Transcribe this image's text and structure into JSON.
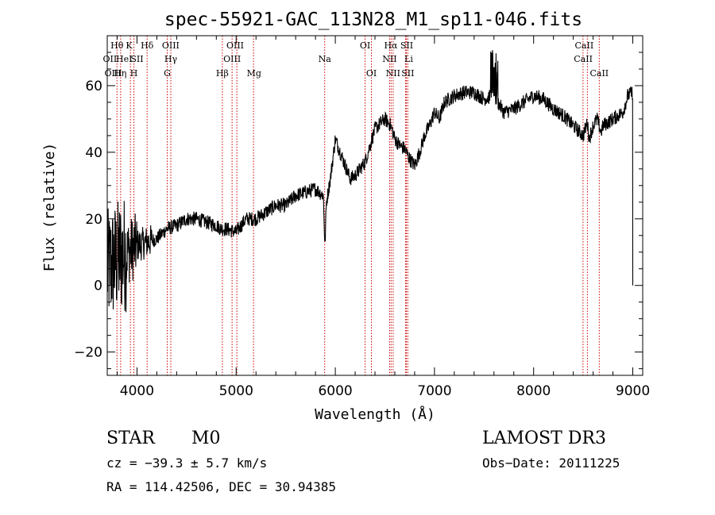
{
  "chart_data": {
    "type": "line",
    "title": "spec-55921-GAC_113N28_M1_sp11-046.fits",
    "xlabel": "Wavelength (Å)",
    "ylabel": "Flux (relative)",
    "xlim": [
      3700,
      9100
    ],
    "ylim": [
      -27,
      75
    ],
    "xticks": [
      4000,
      5000,
      6000,
      7000,
      8000,
      9000
    ],
    "yticks": [
      -20,
      0,
      20,
      40,
      60
    ],
    "line_color": "#000000",
    "marker_color": "#cc0000",
    "spectrum_anchors": {
      "x": [
        3700,
        3800,
        3900,
        4000,
        4100,
        4200,
        4300,
        4400,
        4500,
        4600,
        4700,
        4800,
        4850,
        4900,
        5000,
        5100,
        5200,
        5300,
        5400,
        5500,
        5600,
        5700,
        5800,
        5880,
        5895,
        5910,
        5950,
        6000,
        6050,
        6100,
        6150,
        6200,
        6300,
        6400,
        6500,
        6560,
        6600,
        6650,
        6700,
        6750,
        6800,
        6850,
        6900,
        6950,
        7000,
        7050,
        7100,
        7200,
        7300,
        7400,
        7500,
        7600,
        7700,
        7800,
        7900,
        8000,
        8100,
        8200,
        8300,
        8400,
        8500,
        8540,
        8560,
        8600,
        8640,
        8680,
        8700,
        8800,
        8900,
        8950,
        9000
      ],
      "y": [
        5,
        8,
        10,
        12,
        13,
        14,
        17,
        18,
        20,
        20,
        19,
        18,
        17,
        17,
        16,
        20,
        20,
        22,
        24,
        24,
        27,
        28,
        29,
        27,
        11,
        25,
        32,
        44,
        40,
        36,
        32,
        33,
        37,
        47,
        50,
        48,
        44,
        42,
        41,
        38,
        36,
        40,
        45,
        48,
        52,
        50,
        55,
        57,
        58,
        58,
        56,
        57,
        52,
        53,
        55,
        57,
        56,
        53,
        51,
        48,
        45,
        49,
        44,
        48,
        50,
        46,
        48,
        50,
        52,
        57,
        58
      ]
    },
    "lines": [
      {
        "name": "Hθ",
        "x": 3798
      },
      {
        "name": "Hη",
        "x": 3835
      },
      {
        "name": "K",
        "x": 3934
      },
      {
        "name": "H",
        "x": 3969
      },
      {
        "name": "Hδ",
        "x": 4102
      },
      {
        "name": "G",
        "x": 4305
      },
      {
        "name": "Hγ",
        "x": 4341
      },
      {
        "name": "Hβ",
        "x": 4861
      },
      {
        "name": "OIII",
        "x": 4959
      },
      {
        "name": "OIII",
        "x": 5007
      },
      {
        "name": "Mg",
        "x": 5175
      },
      {
        "name": "Na",
        "x": 5893
      },
      {
        "name": "OI",
        "x": 6300
      },
      {
        "name": "OI",
        "x": 6364
      },
      {
        "name": "NII",
        "x": 6548
      },
      {
        "name": "Hα",
        "x": 6563
      },
      {
        "name": "NII",
        "x": 6583
      },
      {
        "name": "Li",
        "x": 6708
      },
      {
        "name": "SII",
        "x": 6717
      },
      {
        "name": "SII",
        "x": 6731
      },
      {
        "name": "CaII",
        "x": 8498
      },
      {
        "name": "CaII",
        "x": 8542
      },
      {
        "name": "CaII",
        "x": 8662
      }
    ],
    "line_labels": [
      {
        "text": "Hθ",
        "x": 3798,
        "row": 0
      },
      {
        "text": "K",
        "x": 3920,
        "row": 0
      },
      {
        "text": "Hδ",
        "x": 4102,
        "row": 0
      },
      {
        "text": "OIII",
        "x": 4340,
        "row": 0
      },
      {
        "text": "OIII",
        "x": 4990,
        "row": 0
      },
      {
        "text": "OI",
        "x": 6300,
        "row": 0
      },
      {
        "text": "Hα",
        "x": 6560,
        "row": 0
      },
      {
        "text": "SII",
        "x": 6720,
        "row": 0
      },
      {
        "text": "CaII",
        "x": 8510,
        "row": 0
      },
      {
        "text": "OII",
        "x": 3727,
        "row": 1
      },
      {
        "text": "HeI",
        "x": 3870,
        "row": 1
      },
      {
        "text": "SII",
        "x": 4000,
        "row": 1
      },
      {
        "text": "Hγ",
        "x": 4341,
        "row": 1
      },
      {
        "text": "OIII",
        "x": 4959,
        "row": 1
      },
      {
        "text": "Na",
        "x": 5893,
        "row": 1
      },
      {
        "text": "NII",
        "x": 6548,
        "row": 1
      },
      {
        "text": "Li",
        "x": 6740,
        "row": 1
      },
      {
        "text": "CaII",
        "x": 8500,
        "row": 1
      },
      {
        "text": "OIII",
        "x": 3760,
        "row": 2
      },
      {
        "text": "Hη",
        "x": 3830,
        "row": 2
      },
      {
        "text": "H",
        "x": 3969,
        "row": 2
      },
      {
        "text": "G",
        "x": 4305,
        "row": 2
      },
      {
        "text": "Hβ",
        "x": 4861,
        "row": 2
      },
      {
        "text": "Mg",
        "x": 5180,
        "row": 2
      },
      {
        "text": "OI",
        "x": 6364,
        "row": 2
      },
      {
        "text": "NII",
        "x": 6583,
        "row": 2
      },
      {
        "text": "SII",
        "x": 6731,
        "row": 2
      },
      {
        "text": "CaII",
        "x": 8662,
        "row": 2
      }
    ]
  },
  "info": {
    "object_class": "STAR",
    "subclass": "M0",
    "survey": "LAMOST DR3",
    "redshift": "cz = −39.3 ± 5.7 km/s",
    "obs_date": "Obs−Date: 20111225",
    "coords": "RA = 114.42506, DEC =  30.94385"
  }
}
